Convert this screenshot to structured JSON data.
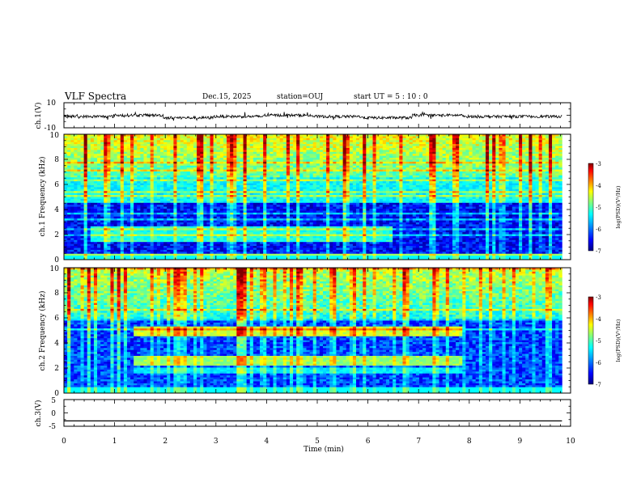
{
  "header": {
    "title": "VLF Spectra",
    "date": "Dec.15, 2025",
    "station": "station=OUJ",
    "start_ut": "start UT = 5 : 10 : 0"
  },
  "colors": {
    "colormap": [
      "#00007f",
      "#0000ff",
      "#00a0ff",
      "#00ffff",
      "#7fff7f",
      "#ffff00",
      "#ff8000",
      "#ff0000",
      "#7f0000"
    ],
    "frame": "#000000",
    "background": "#ffffff"
  },
  "chart_data": [
    {
      "type": "line",
      "panel": "ch1-waveform",
      "ylabel": "ch.1(V)",
      "ylim": [
        -10,
        10
      ],
      "yticks": [
        "10",
        "-10"
      ],
      "x_range_min": [
        0,
        9.83
      ],
      "series": [
        {
          "values": [
            -1,
            0,
            -2,
            -1,
            0,
            -1,
            -2,
            0,
            -1,
            -1
          ]
        }
      ]
    },
    {
      "type": "heatmap",
      "panel": "ch1-spectrogram",
      "ylabel": "ch.1 Frequency (kHz)",
      "ylim": [
        0,
        10
      ],
      "yticks": [
        "0",
        "2",
        "4",
        "6",
        "8",
        "10"
      ],
      "colorbar": {
        "label": "log(PSD)(V²/Hz)",
        "range": [
          -7,
          -3
        ],
        "ticks": [
          "-3",
          "-4",
          "-5",
          "-6",
          "-7"
        ]
      },
      "features": {
        "noise_floor_log_psd": -6.5,
        "high_band_kHz": [
          6.5,
          10
        ],
        "high_band_log_psd": -4.6,
        "band_4_8kHz_log_psd": -5.5,
        "band_1_5_2_5kHz_log_psd": -5.4,
        "impulsive_sferics": true
      }
    },
    {
      "type": "heatmap",
      "panel": "ch2-spectrogram",
      "ylabel": "ch.2 Frequency (kHz)",
      "ylim": [
        0,
        10
      ],
      "yticks": [
        "0",
        "2",
        "4",
        "6",
        "8",
        "10"
      ],
      "colorbar": {
        "label": "log(PSD)(V²/Hz)",
        "range": [
          -7,
          -3
        ],
        "ticks": [
          "-3",
          "-4",
          "-5",
          "-6",
          "-7"
        ]
      },
      "features": {
        "noise_floor_log_psd": -6.3,
        "high_band_kHz": [
          6,
          10
        ],
        "high_band_log_psd": -4.8,
        "emission_bands": [
          {
            "freq_kHz": [
              4.6,
              5.3
            ],
            "t_min": [
              1.35,
              7.85
            ],
            "log_psd": -4.7
          },
          {
            "freq_kHz": [
              2.2,
              3.0
            ],
            "t_min": [
              1.35,
              7.85
            ],
            "log_psd": -4.9
          },
          {
            "freq_kHz": [
              1.6,
              2.1
            ],
            "t_min": [
              1.35,
              7.85
            ],
            "log_psd": -5.6
          }
        ],
        "impulsive_sferics": true
      }
    },
    {
      "type": "line",
      "panel": "ch3-waveform",
      "ylabel": "ch.3(V)",
      "ylim": [
        -5,
        5
      ],
      "yticks": [
        "5",
        "0",
        "-5"
      ],
      "x_range_min": [
        0,
        9.83
      ],
      "series": [
        {
          "values": [
            -3,
            -3
          ]
        }
      ]
    }
  ],
  "xaxis": {
    "label": "Time (min)",
    "range": [
      0,
      10
    ],
    "ticks": [
      "0",
      "1",
      "2",
      "3",
      "4",
      "5",
      "6",
      "7",
      "8",
      "9",
      "10"
    ]
  }
}
